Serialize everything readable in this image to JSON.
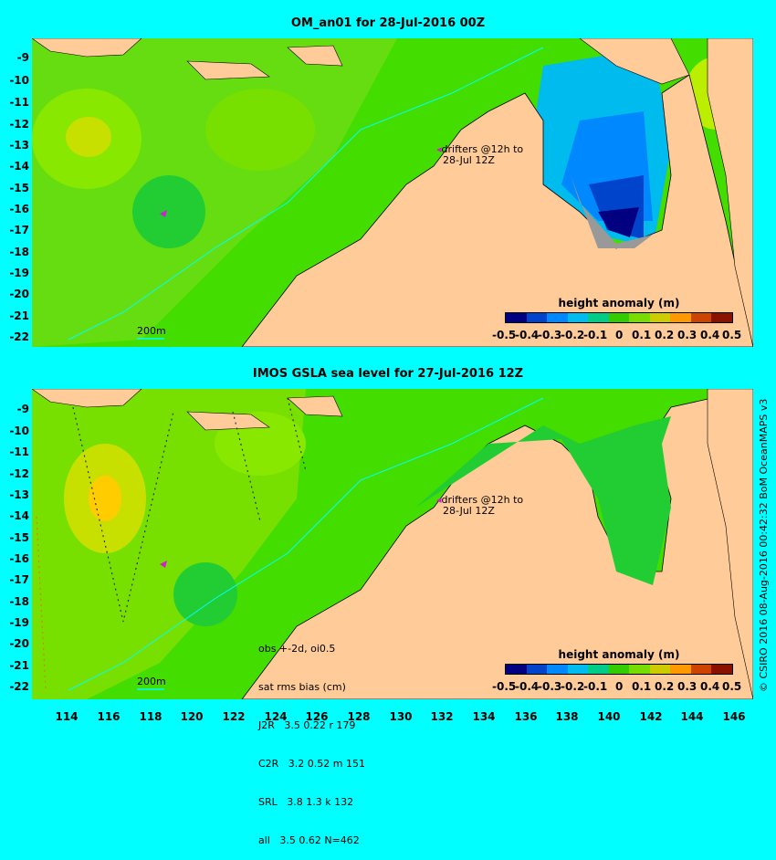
{
  "top": {
    "title": "OM_an01 for 28-Jul-2016 00Z",
    "yticks": [
      "-9",
      "-10",
      "-11",
      "-12",
      "-13",
      "-14",
      "-15",
      "-16",
      "-17",
      "-18",
      "-19",
      "-20",
      "-21",
      "-22"
    ],
    "drifter_line1": "drifters @12h to",
    "drifter_line2": "28-Jul 12Z",
    "scale_label": "200m",
    "colorbar": {
      "title": "height anomaly (m)",
      "labels": [
        "-0.5",
        "-0.4",
        "-0.3",
        "-0.2",
        "-0.1",
        "0",
        "0.1",
        "0.2",
        "0.3",
        "0.4",
        "0.5"
      ]
    }
  },
  "bottom": {
    "title": "IMOS GSLA sea level  for 27-Jul-2016 12Z",
    "yticks": [
      "-9",
      "-10",
      "-11",
      "-12",
      "-13",
      "-14",
      "-15",
      "-16",
      "-17",
      "-18",
      "-19",
      "-20",
      "-21",
      "-22"
    ],
    "drifter_line1": "drifters @12h to",
    "drifter_line2": "28-Jul 12Z",
    "scale_label": "200m",
    "stats": [
      "obs +-2d, oi0.5",
      "sat rms bias (cm)",
      "J2R   3.5 0.22 r 179",
      "C2R   3.2 0.52 m 151",
      "SRL   3.8 1.3 k 132",
      "all   3.5 0.62 N=462"
    ],
    "colorbar": {
      "title": "height anomaly (m)",
      "labels": [
        "-0.5",
        "-0.4",
        "-0.3",
        "-0.2",
        "-0.1",
        "0",
        "0.1",
        "0.2",
        "0.3",
        "0.4",
        "0.5"
      ]
    }
  },
  "xticks": [
    "114",
    "116",
    "118",
    "120",
    "122",
    "124",
    "126",
    "128",
    "130",
    "132",
    "134",
    "136",
    "138",
    "140",
    "142",
    "144",
    "146"
  ],
  "credit": "© CSIRO 2016  08-Aug-2016 00:42:32 BoM OceanMAPS v3",
  "colors": {
    "background": "#00ffff",
    "land": "#ffcc99",
    "ocean_base": "#44dd00",
    "colorbar": [
      "#000080",
      "#0044cc",
      "#0088ff",
      "#00bbee",
      "#00cc88",
      "#33cc00",
      "#77dd00",
      "#cccc00",
      "#ff9900",
      "#cc4400",
      "#881100"
    ]
  }
}
